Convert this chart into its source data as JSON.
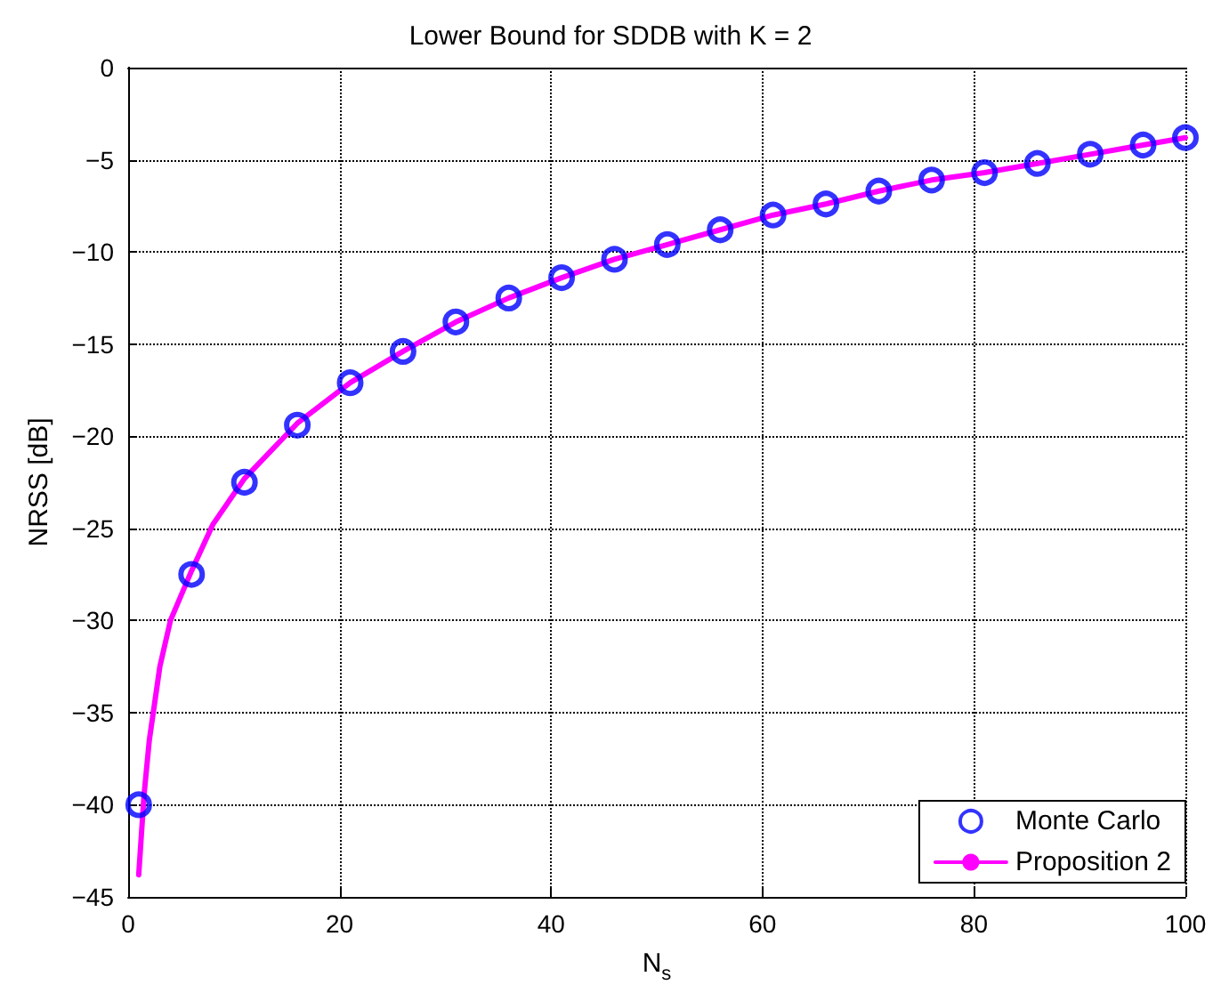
{
  "chart_data": {
    "type": "scatter",
    "title": "Lower Bound for SDDB with K = 2",
    "xlabel": "N$_{s}$",
    "ylabel": "NRSS [dB]",
    "series": [
      {
        "name": "Monte Carlo",
        "marker": "circle",
        "color": "#0000ff",
        "x": [
          1,
          6,
          11,
          16,
          21,
          26,
          31,
          36,
          41,
          46,
          51,
          56,
          61,
          66,
          71,
          76,
          81,
          86,
          91,
          96,
          100
        ],
        "values": [
          -40,
          -27.5,
          -22.5,
          -19.4,
          -17.1,
          -15.4,
          -13.8,
          -12.5,
          -11.4,
          -10.4,
          -9.6,
          -8.8,
          -8.0,
          -7.4,
          -6.7,
          -6.1,
          -5.7,
          -5.2,
          -4.7,
          -4.2,
          -3.8
        ]
      },
      {
        "name": "Proposition 2",
        "type": "line",
        "marker": "none",
        "line_style": "solid",
        "color": "#ff00ff",
        "x": [
          1,
          1.5,
          2,
          3,
          4,
          6,
          8,
          11,
          16,
          21,
          26,
          31,
          36,
          41,
          46,
          51,
          56,
          61,
          66,
          71,
          76,
          81,
          86,
          91,
          96,
          100
        ],
        "values": [
          -43.8,
          -39.5,
          -36.5,
          -32.5,
          -30,
          -27.3,
          -24.8,
          -22.3,
          -19.3,
          -17.1,
          -15.4,
          -13.8,
          -12.5,
          -11.4,
          -10.4,
          -9.6,
          -8.8,
          -8.0,
          -7.4,
          -6.7,
          -6.1,
          -5.7,
          -5.2,
          -4.7,
          -4.2,
          -3.8
        ]
      }
    ],
    "xlim": [
      0,
      100
    ],
    "xticks": [
      0,
      20,
      40,
      60,
      80,
      100
    ],
    "ylim": [
      -45,
      0
    ],
    "yticks": [
      -45,
      -40,
      -35,
      -30,
      -25,
      -20,
      -15,
      -10,
      -5,
      0
    ],
    "grid": true,
    "legend": "bottom right"
  }
}
